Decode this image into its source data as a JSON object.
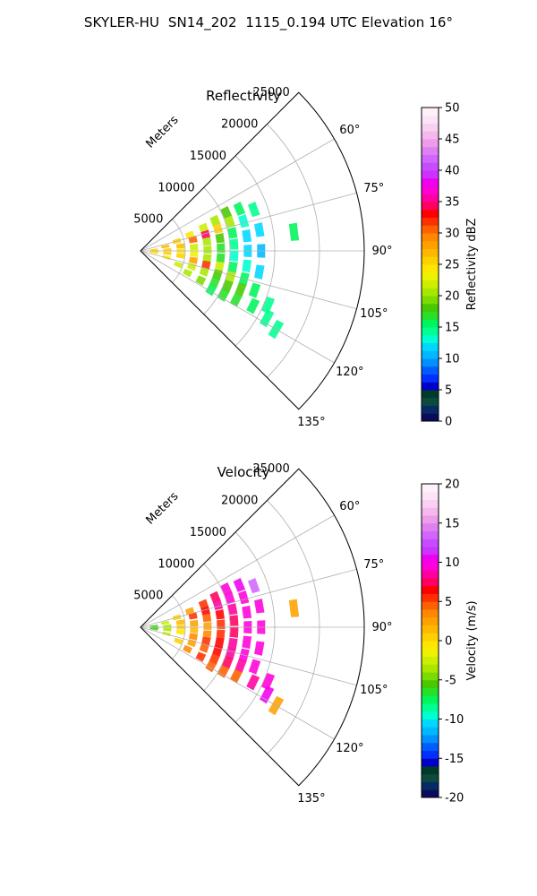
{
  "figure_title": "SKYLER-HU  SN14_202  1115_0.194 UTC Elevation 16°",
  "chart_data": [
    {
      "type": "heatmap",
      "projection": "polar-sector",
      "title": "Reflectivity",
      "range_label": "Meters",
      "range_ticks": [
        5000,
        10000,
        15000,
        20000,
        25000
      ],
      "range_lim": [
        0,
        25000
      ],
      "azimuth_ticks": [
        "60°",
        "75°",
        "90°",
        "105°",
        "120°",
        "135°"
      ],
      "azimuth_lim": [
        45,
        135
      ],
      "grid": true,
      "colorbar": {
        "label": "Reflectivity dBZ",
        "ticks": [
          0,
          5,
          10,
          15,
          20,
          25,
          30,
          35,
          40,
          45,
          50
        ],
        "lim": [
          0,
          50
        ],
        "colors": [
          "#0b0b5e",
          "#052a66",
          "#0e4a3c",
          "#003a2a",
          "#0000c8",
          "#0030ff",
          "#005cff",
          "#0090ff",
          "#00b8ff",
          "#00d8ff",
          "#00ffd0",
          "#00ff90",
          "#00f55a",
          "#28e028",
          "#48c800",
          "#7cdc00",
          "#a8e800",
          "#ccee00",
          "#eef200",
          "#ffe600",
          "#ffd000",
          "#ffb800",
          "#ffa000",
          "#ff8800",
          "#ff6000",
          "#ff3000",
          "#ff0000",
          "#ff0060",
          "#ff00a0",
          "#ff00d8",
          "#f000f0",
          "#cc33ff",
          "#c84cff",
          "#d066ff",
          "#e080f0",
          "#ec9ce8",
          "#f4b8ec",
          "#f8d0f0",
          "#fce4f6",
          "#fff0fa"
        ]
      },
      "echo_cells": [
        {
          "az": 85,
          "r": 1500,
          "value": 26
        },
        {
          "az": 92,
          "r": 1600,
          "value": 25
        },
        {
          "az": 98,
          "r": 1500,
          "value": 24
        },
        {
          "az": 80,
          "r": 2800,
          "value": 27
        },
        {
          "az": 88,
          "r": 3000,
          "value": 26
        },
        {
          "az": 95,
          "r": 3000,
          "value": 25
        },
        {
          "az": 104,
          "r": 3000,
          "value": 24
        },
        {
          "az": 75,
          "r": 4200,
          "value": 25
        },
        {
          "az": 83,
          "r": 4500,
          "value": 27
        },
        {
          "az": 90,
          "r": 4500,
          "value": 24
        },
        {
          "az": 97,
          "r": 4500,
          "value": 26
        },
        {
          "az": 110,
          "r": 4500,
          "value": 22
        },
        {
          "az": 72,
          "r": 5800,
          "value": 24
        },
        {
          "az": 78,
          "r": 6000,
          "value": 31
        },
        {
          "az": 86,
          "r": 6000,
          "value": 22
        },
        {
          "az": 93,
          "r": 6000,
          "value": 23
        },
        {
          "az": 100,
          "r": 6000,
          "value": 28
        },
        {
          "az": 107,
          "r": 6000,
          "value": 22
        },
        {
          "az": 115,
          "r": 5800,
          "value": 20
        },
        {
          "az": 70,
          "r": 7500,
          "value": 22
        },
        {
          "az": 76,
          "r": 7500,
          "value": 34
        },
        {
          "az": 82,
          "r": 7500,
          "value": 20
        },
        {
          "az": 89,
          "r": 7500,
          "value": 21
        },
        {
          "az": 96,
          "r": 7500,
          "value": 20
        },
        {
          "az": 102,
          "r": 7500,
          "value": 32
        },
        {
          "az": 108,
          "r": 7500,
          "value": 20
        },
        {
          "az": 116,
          "r": 7500,
          "value": 19
        },
        {
          "az": 68,
          "r": 9000,
          "value": 20
        },
        {
          "az": 74,
          "r": 9000,
          "value": 26
        },
        {
          "az": 81,
          "r": 9000,
          "value": 18
        },
        {
          "az": 88,
          "r": 9000,
          "value": 17
        },
        {
          "az": 95,
          "r": 9000,
          "value": 17
        },
        {
          "az": 101,
          "r": 9000,
          "value": 22
        },
        {
          "az": 107,
          "r": 9000,
          "value": 18
        },
        {
          "az": 113,
          "r": 9000,
          "value": 17
        },
        {
          "az": 119,
          "r": 9000,
          "value": 16
        },
        {
          "az": 66,
          "r": 10500,
          "value": 18
        },
        {
          "az": 72,
          "r": 10500,
          "value": 20
        },
        {
          "az": 79,
          "r": 10500,
          "value": 15
        },
        {
          "az": 86,
          "r": 10500,
          "value": 14
        },
        {
          "az": 93,
          "r": 10500,
          "value": 13
        },
        {
          "az": 100,
          "r": 10500,
          "value": 15
        },
        {
          "az": 106,
          "r": 10500,
          "value": 20
        },
        {
          "az": 112,
          "r": 10500,
          "value": 18
        },
        {
          "az": 118,
          "r": 10500,
          "value": 17
        },
        {
          "az": 67,
          "r": 12000,
          "value": 16
        },
        {
          "az": 74,
          "r": 12000,
          "value": 13
        },
        {
          "az": 82,
          "r": 12000,
          "value": 12
        },
        {
          "az": 90,
          "r": 12000,
          "value": 12
        },
        {
          "az": 98,
          "r": 12000,
          "value": 13
        },
        {
          "az": 105,
          "r": 12000,
          "value": 16
        },
        {
          "az": 111,
          "r": 12000,
          "value": 18
        },
        {
          "az": 117,
          "r": 12000,
          "value": 17
        },
        {
          "az": 70,
          "r": 13500,
          "value": 14
        },
        {
          "az": 80,
          "r": 13500,
          "value": 12
        },
        {
          "az": 90,
          "r": 13500,
          "value": 11
        },
        {
          "az": 100,
          "r": 13500,
          "value": 12
        },
        {
          "az": 109,
          "r": 13500,
          "value": 15
        },
        {
          "az": 116,
          "r": 14000,
          "value": 15
        },
        {
          "az": 118,
          "r": 16000,
          "value": 14
        },
        {
          "az": 113,
          "r": 15500,
          "value": 14
        },
        {
          "az": 120,
          "r": 17500,
          "value": 14
        },
        {
          "az": 83,
          "r": 17300,
          "value": 15
        }
      ]
    },
    {
      "type": "heatmap",
      "projection": "polar-sector",
      "title": "Velocity",
      "range_label": "Meters",
      "range_ticks": [
        5000,
        10000,
        15000,
        20000,
        25000
      ],
      "range_lim": [
        0,
        25000
      ],
      "azimuth_ticks": [
        "60°",
        "75°",
        "90°",
        "105°",
        "120°",
        "135°"
      ],
      "azimuth_lim": [
        45,
        135
      ],
      "grid": true,
      "colorbar": {
        "label": "Velocity (m/s)",
        "ticks": [
          -20,
          -15,
          -10,
          -5,
          0,
          5,
          10,
          15,
          20
        ],
        "lim": [
          -20,
          20
        ],
        "colors": [
          "#0b0b5e",
          "#052a66",
          "#0e4a3c",
          "#003a2a",
          "#0000c8",
          "#0030ff",
          "#005cff",
          "#0090ff",
          "#00b8ff",
          "#00d8ff",
          "#00ffd0",
          "#00ff90",
          "#00f55a",
          "#28e028",
          "#48c800",
          "#7cdc00",
          "#a8e800",
          "#ccee00",
          "#eef200",
          "#ffe600",
          "#ffd000",
          "#ffb800",
          "#ffa000",
          "#ff8800",
          "#ff6000",
          "#ff3000",
          "#ff0000",
          "#ff0060",
          "#ff00a0",
          "#ff00d8",
          "#f000f0",
          "#cc33ff",
          "#c84cff",
          "#d066ff",
          "#e080f0",
          "#ec9ce8",
          "#f4b8ec",
          "#f8d0f0",
          "#fce4f6",
          "#fff0fa"
        ]
      },
      "echo_cells": [
        {
          "az": 85,
          "r": 1500,
          "value": -6
        },
        {
          "az": 92,
          "r": 1600,
          "value": -7
        },
        {
          "az": 98,
          "r": 1500,
          "value": -6
        },
        {
          "az": 80,
          "r": 2800,
          "value": -3
        },
        {
          "az": 88,
          "r": 3000,
          "value": -4
        },
        {
          "az": 95,
          "r": 3000,
          "value": -4
        },
        {
          "az": 104,
          "r": 3000,
          "value": -3
        },
        {
          "az": 75,
          "r": 4200,
          "value": 0
        },
        {
          "az": 83,
          "r": 4500,
          "value": 1
        },
        {
          "az": 90,
          "r": 4500,
          "value": 0
        },
        {
          "az": 97,
          "r": 4500,
          "value": -1
        },
        {
          "az": 110,
          "r": 4500,
          "value": 0
        },
        {
          "az": 72,
          "r": 5800,
          "value": 2
        },
        {
          "az": 78,
          "r": 6000,
          "value": 5
        },
        {
          "az": 86,
          "r": 6000,
          "value": 2
        },
        {
          "az": 93,
          "r": 6000,
          "value": 1
        },
        {
          "az": 100,
          "r": 6000,
          "value": 3
        },
        {
          "az": 107,
          "r": 6000,
          "value": 2
        },
        {
          "az": 115,
          "r": 5800,
          "value": 3
        },
        {
          "az": 70,
          "r": 7500,
          "value": 5
        },
        {
          "az": 76,
          "r": 7500,
          "value": 6
        },
        {
          "az": 82,
          "r": 7500,
          "value": 4
        },
        {
          "az": 89,
          "r": 7500,
          "value": 2
        },
        {
          "az": 96,
          "r": 7500,
          "value": 3
        },
        {
          "az": 102,
          "r": 7500,
          "value": 5
        },
        {
          "az": 108,
          "r": 7500,
          "value": 4
        },
        {
          "az": 116,
          "r": 7500,
          "value": 5
        },
        {
          "az": 68,
          "r": 9000,
          "value": 7
        },
        {
          "az": 74,
          "r": 9000,
          "value": 8
        },
        {
          "az": 81,
          "r": 9000,
          "value": 6
        },
        {
          "az": 88,
          "r": 9000,
          "value": 5
        },
        {
          "az": 95,
          "r": 9000,
          "value": 5
        },
        {
          "az": 101,
          "r": 9000,
          "value": 6
        },
        {
          "az": 107,
          "r": 9000,
          "value": 6
        },
        {
          "az": 113,
          "r": 9000,
          "value": 5
        },
        {
          "az": 119,
          "r": 9000,
          "value": 4
        },
        {
          "az": 66,
          "r": 10500,
          "value": 9
        },
        {
          "az": 72,
          "r": 10500,
          "value": 9
        },
        {
          "az": 79,
          "r": 10500,
          "value": 8
        },
        {
          "az": 86,
          "r": 10500,
          "value": 7
        },
        {
          "az": 93,
          "r": 10500,
          "value": 7
        },
        {
          "az": 100,
          "r": 10500,
          "value": 8
        },
        {
          "az": 106,
          "r": 10500,
          "value": 8
        },
        {
          "az": 112,
          "r": 10500,
          "value": 7
        },
        {
          "az": 118,
          "r": 10500,
          "value": 4
        },
        {
          "az": 67,
          "r": 12000,
          "value": 10
        },
        {
          "az": 74,
          "r": 12000,
          "value": 9
        },
        {
          "az": 82,
          "r": 12000,
          "value": 9
        },
        {
          "az": 90,
          "r": 12000,
          "value": 9
        },
        {
          "az": 98,
          "r": 12000,
          "value": 9
        },
        {
          "az": 105,
          "r": 12000,
          "value": 9
        },
        {
          "az": 111,
          "r": 12000,
          "value": 8
        },
        {
          "az": 117,
          "r": 12000,
          "value": 4
        },
        {
          "az": 70,
          "r": 13500,
          "value": 13
        },
        {
          "az": 80,
          "r": 13500,
          "value": 9
        },
        {
          "az": 90,
          "r": 13500,
          "value": 9
        },
        {
          "az": 100,
          "r": 13500,
          "value": 9
        },
        {
          "az": 109,
          "r": 13500,
          "value": 9
        },
        {
          "az": 116,
          "r": 14000,
          "value": 8
        },
        {
          "az": 118,
          "r": 16000,
          "value": 10
        },
        {
          "az": 113,
          "r": 15500,
          "value": 9
        },
        {
          "az": 120,
          "r": 17500,
          "value": 2
        },
        {
          "az": 83,
          "r": 17300,
          "value": 2
        }
      ]
    }
  ]
}
